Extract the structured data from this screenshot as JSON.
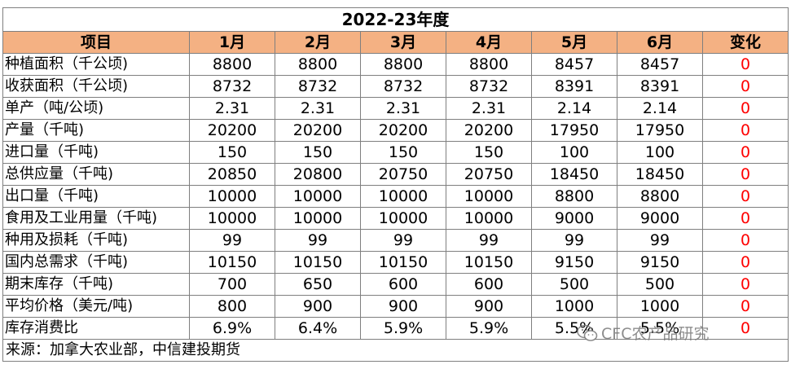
{
  "title": "2022-23年度",
  "header": {
    "item": "项目",
    "months": [
      "1月",
      "2月",
      "3月",
      "4月",
      "5月",
      "6月"
    ],
    "change": "变化"
  },
  "rows": [
    {
      "label": "种植面积（千公顷)",
      "values": [
        "8800",
        "8800",
        "8800",
        "8800",
        "8457",
        "8457"
      ],
      "change": "0"
    },
    {
      "label": "收获面积（千公顷)",
      "values": [
        "8732",
        "8732",
        "8732",
        "8732",
        "8391",
        "8391"
      ],
      "change": "0"
    },
    {
      "label": "单产（吨/公顷)",
      "values": [
        "2.31",
        "2.31",
        "2.31",
        "2.31",
        "2.14",
        "2.14"
      ],
      "change": "0"
    },
    {
      "label": "产量（千吨)",
      "values": [
        "20200",
        "20200",
        "20200",
        "20200",
        "17950",
        "17950"
      ],
      "change": "0"
    },
    {
      "label": "进口量（千吨)",
      "values": [
        "150",
        "150",
        "150",
        "150",
        "100",
        "100"
      ],
      "change": "0"
    },
    {
      "label": "总供应量（千吨)",
      "values": [
        "20850",
        "20800",
        "20750",
        "20750",
        "18450",
        "18450"
      ],
      "change": "0"
    },
    {
      "label": "出口量（千吨)",
      "values": [
        "10000",
        "10000",
        "10000",
        "10000",
        "8800",
        "8800"
      ],
      "change": "0"
    },
    {
      "label": "食用及工业用量（千吨)",
      "values": [
        "10000",
        "10000",
        "10000",
        "10000",
        "9000",
        "9000"
      ],
      "change": "0"
    },
    {
      "label": "种用及损耗（千吨)",
      "values": [
        "99",
        "99",
        "99",
        "99",
        "99",
        "99"
      ],
      "change": "0"
    },
    {
      "label": "国内总需求（千吨)",
      "values": [
        "10150",
        "10150",
        "10150",
        "10150",
        "9150",
        "9150"
      ],
      "change": "0"
    },
    {
      "label": "期末库存（千吨)",
      "values": [
        "700",
        "650",
        "600",
        "600",
        "500",
        "500"
      ],
      "change": "0"
    },
    {
      "label": "平均价格（美元/吨)",
      "values": [
        "800",
        "900",
        "900",
        "900",
        "1000",
        "1000"
      ],
      "change": "0"
    },
    {
      "label": "库存消费比",
      "values": [
        "6.9%",
        "6.4%",
        "5.9%",
        "5.9%",
        "5.5%",
        "5.5%"
      ],
      "change": "0"
    }
  ],
  "source": "来源：加拿大农业部，中信建投期货",
  "watermark": {
    "text": "CFC农产品研究",
    "icon": "wechat-icon"
  }
}
